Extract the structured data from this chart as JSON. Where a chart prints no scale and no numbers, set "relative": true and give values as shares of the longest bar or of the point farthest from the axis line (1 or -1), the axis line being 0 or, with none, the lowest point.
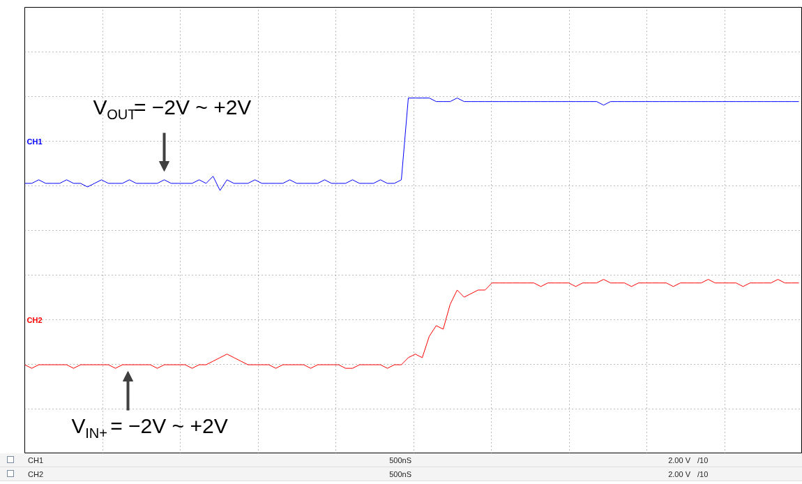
{
  "chart_data": {
    "type": "line",
    "relative": true,
    "grid": true,
    "marker": "none",
    "line_style": "solid",
    "categories": [
      null,
      null,
      null,
      null,
      null,
      null,
      null,
      null,
      null,
      null,
      null,
      null,
      null,
      null,
      null,
      null,
      null,
      null,
      null,
      null,
      null,
      null,
      null,
      null,
      null,
      null,
      null,
      null,
      null,
      null,
      null,
      null,
      null,
      null,
      null,
      null,
      null,
      null,
      null,
      null,
      null,
      null,
      null,
      null,
      null,
      null,
      null,
      null,
      null,
      null,
      null,
      null,
      null,
      null,
      null,
      null,
      null,
      null,
      null,
      null,
      null,
      null,
      null,
      null,
      null,
      null,
      null,
      null,
      null,
      null,
      null,
      null,
      null,
      null,
      null,
      null,
      null,
      null,
      null,
      null,
      null,
      null,
      null,
      null,
      null,
      null,
      null,
      null,
      null,
      null,
      null,
      null,
      null,
      null,
      null,
      null,
      null,
      null,
      null,
      null,
      null,
      null,
      null,
      null,
      null,
      null,
      null,
      null,
      null,
      null,
      null,
      null
    ],
    "series": [
      {
        "name": "CH1",
        "color": "#0000ff",
        "values": [
          0.76,
          0.76,
          0.77,
          0.76,
          0.76,
          0.76,
          0.77,
          0.76,
          0.76,
          0.75,
          0.76,
          0.77,
          0.76,
          0.76,
          0.76,
          0.77,
          0.76,
          0.76,
          0.76,
          0.76,
          0.77,
          0.76,
          0.76,
          0.76,
          0.76,
          0.77,
          0.76,
          0.78,
          0.74,
          0.77,
          0.76,
          0.76,
          0.76,
          0.77,
          0.76,
          0.76,
          0.76,
          0.76,
          0.77,
          0.76,
          0.76,
          0.76,
          0.76,
          0.77,
          0.76,
          0.76,
          0.76,
          0.77,
          0.76,
          0.76,
          0.76,
          0.77,
          0.76,
          0.76,
          0.77,
          1.0,
          1.0,
          1.0,
          1.0,
          0.99,
          0.99,
          0.99,
          1.0,
          0.99,
          0.99,
          0.99,
          0.99,
          0.99,
          0.99,
          0.99,
          0.99,
          0.99,
          0.99,
          0.99,
          0.99,
          0.99,
          0.99,
          0.99,
          0.99,
          0.99,
          0.99,
          0.99,
          0.99,
          0.98,
          0.99,
          0.99,
          0.99,
          0.99,
          0.99,
          0.99,
          0.99,
          0.99,
          0.99,
          0.99,
          0.99,
          0.99,
          0.99,
          0.99,
          0.99,
          0.99,
          0.99,
          0.99,
          0.99,
          0.99,
          0.99,
          0.99,
          0.99,
          0.99,
          0.99,
          0.99,
          0.99,
          0.99
        ]
      },
      {
        "name": "CH2",
        "color": "#ff0000",
        "values": [
          0.25,
          0.24,
          0.25,
          0.25,
          0.25,
          0.25,
          0.25,
          0.24,
          0.25,
          0.25,
          0.25,
          0.25,
          0.25,
          0.24,
          0.25,
          0.25,
          0.25,
          0.25,
          0.25,
          0.24,
          0.25,
          0.25,
          0.25,
          0.25,
          0.24,
          0.25,
          0.25,
          0.26,
          0.27,
          0.28,
          0.27,
          0.26,
          0.25,
          0.25,
          0.25,
          0.25,
          0.24,
          0.25,
          0.25,
          0.25,
          0.25,
          0.24,
          0.25,
          0.25,
          0.25,
          0.25,
          0.24,
          0.24,
          0.25,
          0.25,
          0.25,
          0.25,
          0.24,
          0.25,
          0.25,
          0.27,
          0.28,
          0.27,
          0.33,
          0.36,
          0.35,
          0.42,
          0.46,
          0.44,
          0.45,
          0.46,
          0.46,
          0.48,
          0.48,
          0.48,
          0.48,
          0.48,
          0.48,
          0.48,
          0.47,
          0.48,
          0.48,
          0.48,
          0.48,
          0.47,
          0.48,
          0.48,
          0.48,
          0.49,
          0.48,
          0.48,
          0.48,
          0.47,
          0.48,
          0.48,
          0.48,
          0.48,
          0.48,
          0.47,
          0.48,
          0.48,
          0.48,
          0.48,
          0.49,
          0.48,
          0.48,
          0.48,
          0.48,
          0.47,
          0.48,
          0.48,
          0.48,
          0.48,
          0.49,
          0.48,
          0.48,
          0.48
        ]
      }
    ],
    "annotations": [
      "V$_{OUT}$= −2V ~ +2V",
      "V$_{IN+}$= −2V ~ +2V",
      "CH1",
      "500nS",
      "2.00 V",
      "/10",
      "CH2",
      "500nS",
      "2.00 V",
      "/10"
    ]
  }
}
